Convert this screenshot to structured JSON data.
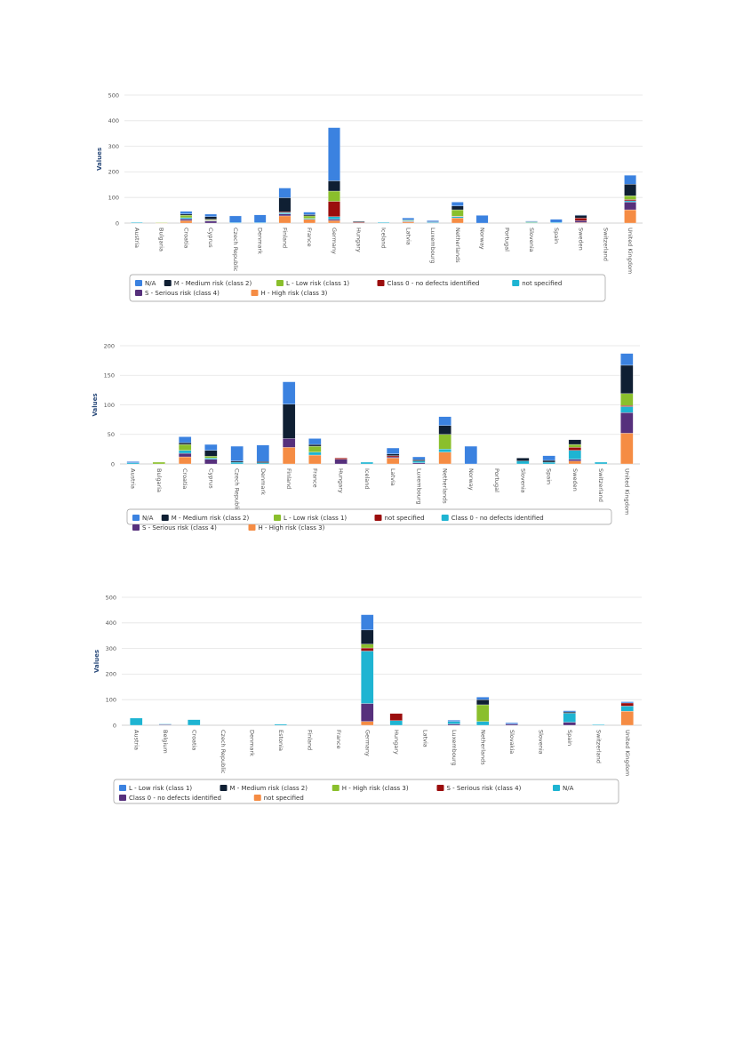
{
  "chart_data": [
    {
      "type": "bar",
      "stacked": true,
      "ylabel": "Values",
      "ylim": [
        0,
        500
      ],
      "yticks": [
        0,
        100,
        200,
        300,
        400,
        500
      ],
      "grid": true,
      "legend_position": "bottom",
      "categories": [
        "Austria",
        "Bulgaria",
        "Croatia",
        "Cyprus",
        "Czech Republic",
        "Denmark",
        "Finland",
        "France",
        "Germany",
        "Hungary",
        "Iceland",
        "Latvia",
        "Luxembourg",
        "Netherlands",
        "Norway",
        "Portugal",
        "Slovenia",
        "Spain",
        "Sweden",
        "Switzerland",
        "United Kingdom"
      ],
      "series": [
        {
          "name": "H - High risk (class 3)",
          "color": "#f58c44",
          "values": [
            0,
            1,
            10,
            0,
            0,
            0,
            28,
            15,
            10,
            0,
            0,
            5,
            0,
            20,
            0,
            0,
            0,
            0,
            2,
            0,
            52
          ]
        },
        {
          "name": "S - Serious risk (class 4)",
          "color": "#56307c",
          "values": [
            0,
            0,
            6,
            8,
            0,
            0,
            8,
            0,
            5,
            0,
            0,
            2,
            0,
            0,
            0,
            0,
            0,
            0,
            8,
            0,
            30
          ]
        },
        {
          "name": "not specified",
          "color": "#1eb4d2",
          "values": [
            3,
            0,
            5,
            2,
            2,
            2,
            5,
            3,
            10,
            0,
            3,
            2,
            3,
            5,
            0,
            0,
            2,
            3,
            0,
            0,
            5
          ]
        },
        {
          "name": "Class 0 - no defects identified",
          "color": "#9b0d0d",
          "values": [
            0,
            0,
            0,
            2,
            0,
            0,
            3,
            0,
            60,
            3,
            0,
            0,
            0,
            2,
            0,
            0,
            0,
            0,
            10,
            0,
            5
          ]
        },
        {
          "name": "L - Low risk (class 1)",
          "color": "#8abf2c",
          "values": [
            0,
            2,
            10,
            3,
            0,
            0,
            0,
            10,
            40,
            0,
            0,
            3,
            0,
            25,
            0,
            0,
            3,
            0,
            0,
            0,
            15
          ]
        },
        {
          "name": "M - Medium risk (class 2)",
          "color": "#0f1f33",
          "values": [
            0,
            0,
            5,
            10,
            0,
            0,
            55,
            5,
            40,
            3,
            0,
            0,
            2,
            15,
            0,
            0,
            0,
            0,
            10,
            0,
            45
          ]
        },
        {
          "name": "N/A",
          "color": "#3b82e0",
          "values": [
            0,
            0,
            10,
            10,
            26,
            30,
            38,
            10,
            208,
            0,
            0,
            8,
            5,
            15,
            30,
            0,
            3,
            12,
            2,
            0,
            35
          ]
        }
      ],
      "legend_order": [
        "N/A",
        "M - Medium risk (class 2)",
        "L - Low risk (class 1)",
        "Class 0 - no defects identified",
        "not specified",
        "S - Serious risk (class 4)",
        "H - High risk (class 3)"
      ]
    },
    {
      "type": "bar",
      "stacked": true,
      "ylabel": "Values",
      "ylim": [
        0,
        200
      ],
      "yticks": [
        0,
        50,
        100,
        150,
        200
      ],
      "grid": true,
      "legend_position": "bottom",
      "categories": [
        "Austria",
        "Bulgaria",
        "Croatia",
        "Cyprus",
        "Czech Republic",
        "Denmark",
        "Finland",
        "France",
        "Hungary",
        "Iceland",
        "Latvia",
        "Luxembourg",
        "Netherlands",
        "Norway",
        "Portugal",
        "Slovenia",
        "Spain",
        "Sweden",
        "Switzerland",
        "United Kingdom"
      ],
      "series": [
        {
          "name": "H - High risk (class 3)",
          "color": "#f58c44",
          "values": [
            0,
            0,
            12,
            0,
            0,
            0,
            28,
            15,
            0,
            0,
            10,
            0,
            20,
            0,
            0,
            0,
            0,
            5,
            0,
            52
          ]
        },
        {
          "name": "S - Serious risk (class 4)",
          "color": "#56307c",
          "values": [
            0,
            0,
            6,
            8,
            0,
            0,
            15,
            0,
            8,
            0,
            2,
            2,
            0,
            0,
            0,
            0,
            0,
            3,
            0,
            35
          ]
        },
        {
          "name": "Class 0 - no defects identified",
          "color": "#1eb4d2",
          "values": [
            2,
            0,
            5,
            2,
            3,
            2,
            0,
            5,
            0,
            3,
            0,
            3,
            5,
            0,
            0,
            5,
            3,
            15,
            3,
            10
          ]
        },
        {
          "name": "not specified",
          "color": "#9b0d0d",
          "values": [
            0,
            0,
            0,
            0,
            0,
            0,
            0,
            0,
            2,
            0,
            2,
            0,
            0,
            0,
            0,
            0,
            0,
            5,
            0,
            2
          ]
        },
        {
          "name": "L - Low risk (class 1)",
          "color": "#8abf2c",
          "values": [
            0,
            3,
            10,
            3,
            0,
            0,
            0,
            10,
            0,
            0,
            0,
            0,
            25,
            0,
            0,
            0,
            0,
            5,
            0,
            20
          ]
        },
        {
          "name": "M - Medium risk (class 2)",
          "color": "#0f1f33",
          "values": [
            0,
            0,
            3,
            10,
            2,
            2,
            58,
            3,
            0,
            0,
            3,
            2,
            15,
            0,
            0,
            5,
            3,
            8,
            0,
            48
          ]
        },
        {
          "name": "N/A",
          "color": "#3b82e0",
          "values": [
            2,
            0,
            10,
            10,
            25,
            28,
            38,
            10,
            0,
            0,
            10,
            5,
            15,
            30,
            0,
            0,
            8,
            0,
            0,
            20
          ]
        }
      ],
      "legend_order": [
        "N/A",
        "M - Medium risk (class 2)",
        "L - Low risk (class 1)",
        "not specified",
        "Class 0 - no defects identified",
        "S - Serious risk (class 4)",
        "H - High risk (class 3)"
      ]
    },
    {
      "type": "bar",
      "stacked": true,
      "ylabel": "Values",
      "ylim": [
        0,
        500
      ],
      "yticks": [
        0,
        100,
        200,
        300,
        400,
        500
      ],
      "grid": true,
      "legend_position": "bottom",
      "categories": [
        "Austria",
        "Belgium",
        "Croatia",
        "Czech Republic",
        "Denmark",
        "Estonia",
        "Finland",
        "France",
        "Germany",
        "Hungary",
        "Latvia",
        "Luxembourg",
        "Netherlands",
        "Slovakia",
        "Slovenia",
        "Spain",
        "Switzerland",
        "United Kingdom"
      ],
      "series": [
        {
          "name": "not specified",
          "color": "#f58c44",
          "values": [
            0,
            0,
            0,
            0,
            0,
            0,
            0,
            0,
            15,
            0,
            0,
            0,
            0,
            0,
            0,
            0,
            0,
            55
          ]
        },
        {
          "name": "Class 0 - no defects identified",
          "color": "#56307c",
          "values": [
            0,
            3,
            0,
            0,
            0,
            0,
            0,
            0,
            70,
            0,
            0,
            5,
            0,
            5,
            0,
            12,
            0,
            0
          ]
        },
        {
          "name": "N/A",
          "color": "#1eb4d2",
          "values": [
            28,
            2,
            22,
            0,
            0,
            4,
            0,
            0,
            205,
            18,
            0,
            10,
            15,
            0,
            0,
            35,
            3,
            20
          ]
        },
        {
          "name": "S - Serious risk (class 4)",
          "color": "#9b0d0d",
          "values": [
            0,
            0,
            0,
            0,
            0,
            0,
            0,
            0,
            12,
            28,
            0,
            0,
            0,
            0,
            0,
            0,
            0,
            12
          ]
        },
        {
          "name": "H - High risk (class 3)",
          "color": "#8abf2c",
          "values": [
            0,
            0,
            0,
            0,
            0,
            0,
            0,
            0,
            15,
            0,
            0,
            0,
            65,
            0,
            0,
            0,
            0,
            0
          ]
        },
        {
          "name": "M - Medium risk (class 2)",
          "color": "#0f1f33",
          "values": [
            0,
            0,
            0,
            0,
            0,
            0,
            0,
            0,
            55,
            0,
            0,
            0,
            20,
            0,
            0,
            5,
            0,
            0
          ]
        },
        {
          "name": "L - Low risk (class 1)",
          "color": "#3b82e0",
          "values": [
            0,
            0,
            0,
            0,
            0,
            0,
            0,
            0,
            60,
            0,
            0,
            5,
            10,
            5,
            0,
            5,
            0,
            5
          ]
        }
      ],
      "legend_order": [
        "L - Low risk (class 1)",
        "M - Medium risk (class 2)",
        "H - High risk (class 3)",
        "S - Serious risk (class 4)",
        "N/A",
        "Class 0 - no defects identified",
        "not specified"
      ]
    }
  ]
}
